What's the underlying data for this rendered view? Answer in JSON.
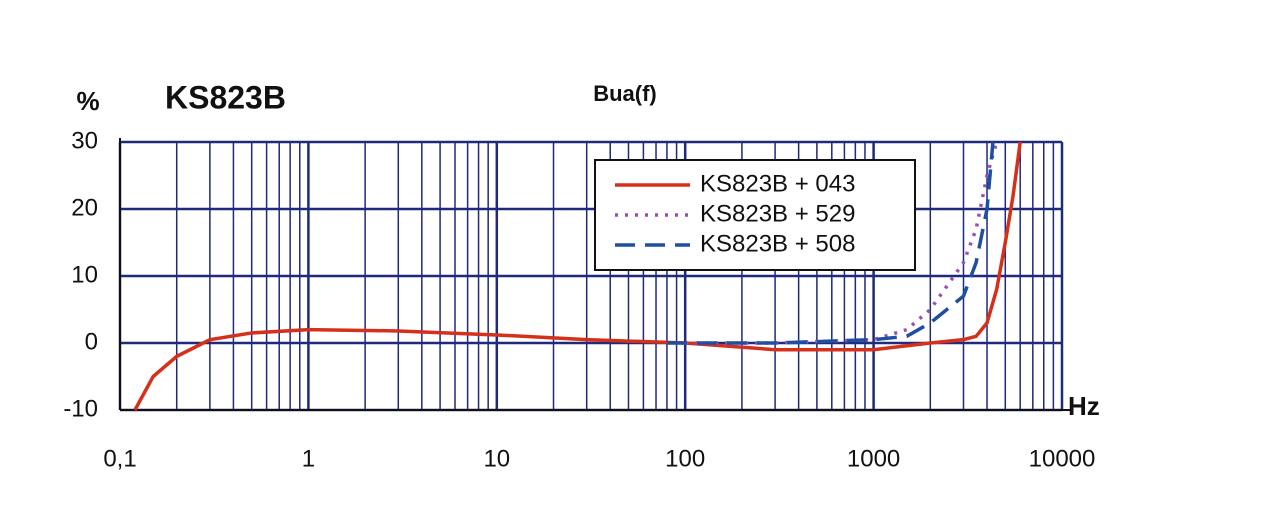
{
  "chart_data": {
    "type": "line",
    "title": "KS823B",
    "subtitle": "Bua(f)",
    "y_label": "%",
    "x_label": "Hz",
    "xscale": "log",
    "xlim": [
      0.1,
      10000
    ],
    "xticks": [
      {
        "value": 0.1,
        "label": "0,1"
      },
      1,
      10,
      100,
      1000,
      10000
    ],
    "ylim": [
      -10,
      30
    ],
    "yticks": [
      -10,
      0,
      10,
      20,
      30
    ],
    "grid": true,
    "grid_color": "#1f2a7a",
    "legend": "upper right",
    "series": [
      {
        "name": "KS823B + 043",
        "color": "#d4301a",
        "dash": "solid",
        "x": [
          0.12,
          0.15,
          0.2,
          0.3,
          0.5,
          1,
          3,
          10,
          30,
          100,
          300,
          1000,
          2000,
          3000,
          3500,
          4000,
          4500,
          5000,
          5500,
          6000
        ],
        "values": [
          -10,
          -5,
          -2,
          0.5,
          1.5,
          2,
          1.8,
          1.2,
          0.5,
          0,
          -1,
          -1,
          0,
          0.5,
          1,
          3,
          8,
          15,
          22,
          30
        ]
      },
      {
        "name": "KS823B + 529",
        "color": "#9a4fb0",
        "dash": "dotted",
        "x": [
          100,
          300,
          1000,
          1500,
          2000,
          3000,
          3500,
          4000,
          4500
        ],
        "values": [
          0,
          0,
          0.5,
          2,
          5,
          12,
          17,
          25,
          30
        ]
      },
      {
        "name": "KS823B + 508",
        "color": "#1f4fa0",
        "dash": "dashed",
        "x": [
          80,
          300,
          1000,
          1500,
          2000,
          3000,
          3500,
          4000,
          4300
        ],
        "values": [
          0,
          0,
          0.5,
          1,
          3,
          7,
          12,
          20,
          30
        ]
      }
    ]
  }
}
